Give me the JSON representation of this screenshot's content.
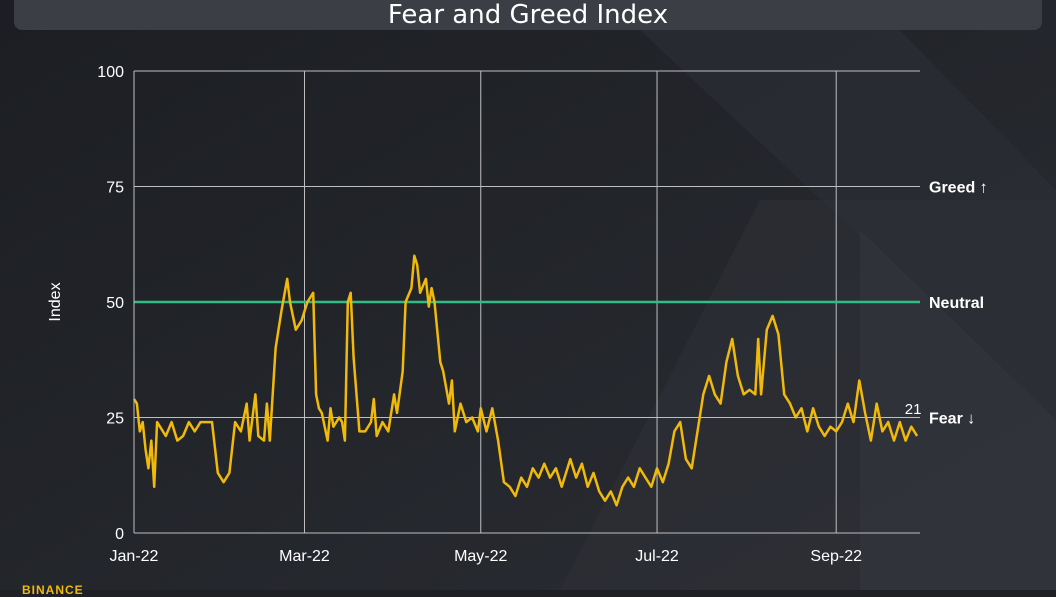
{
  "title": "Fear and Greed Index",
  "brand": "BINANCE",
  "colors": {
    "background": "#1e2026",
    "line": "#f0b90b",
    "neutral_line": "#2ebd85",
    "grid": "#bfbfbf",
    "text": "#ffffff"
  },
  "chart_data": {
    "type": "line",
    "title": "Fear and Greed Index",
    "xlabel": "",
    "ylabel": "Index",
    "ylim": [
      0,
      100
    ],
    "y_ticks": [
      "0",
      "25",
      "50",
      "75",
      "100"
    ],
    "x_ticks": [
      {
        "label": "Jan-22",
        "date": "2022-01-01"
      },
      {
        "label": "Mar-22",
        "date": "2022-03-01"
      },
      {
        "label": "May-22",
        "date": "2022-05-01"
      },
      {
        "label": "Jul-22",
        "date": "2022-07-01"
      },
      {
        "label": "Sep-22",
        "date": "2022-09-01"
      }
    ],
    "xlim": [
      "2022-01-01",
      "2022-09-30"
    ],
    "grid": true,
    "reference_lines": [
      {
        "value": 75,
        "label": "Greed ↑"
      },
      {
        "value": 50,
        "label": "Neutral"
      },
      {
        "value": 25,
        "label": "Fear ↓"
      }
    ],
    "last_value_label": "21",
    "series": [
      {
        "name": "",
        "points": [
          [
            "2022-01-01",
            29
          ],
          [
            "2022-01-02",
            28
          ],
          [
            "2022-01-03",
            22
          ],
          [
            "2022-01-04",
            24
          ],
          [
            "2022-01-05",
            18
          ],
          [
            "2022-01-06",
            14
          ],
          [
            "2022-01-07",
            20
          ],
          [
            "2022-01-08",
            10
          ],
          [
            "2022-01-09",
            24
          ],
          [
            "2022-01-10",
            23
          ],
          [
            "2022-01-12",
            21
          ],
          [
            "2022-01-14",
            24
          ],
          [
            "2022-01-16",
            20
          ],
          [
            "2022-01-18",
            21
          ],
          [
            "2022-01-20",
            24
          ],
          [
            "2022-01-22",
            22
          ],
          [
            "2022-01-24",
            24
          ],
          [
            "2022-01-26",
            24
          ],
          [
            "2022-01-28",
            24
          ],
          [
            "2022-01-30",
            13
          ],
          [
            "2022-02-01",
            11
          ],
          [
            "2022-02-03",
            13
          ],
          [
            "2022-02-05",
            24
          ],
          [
            "2022-02-07",
            22
          ],
          [
            "2022-02-09",
            28
          ],
          [
            "2022-02-10",
            20
          ],
          [
            "2022-02-12",
            30
          ],
          [
            "2022-02-13",
            21
          ],
          [
            "2022-02-15",
            20
          ],
          [
            "2022-02-16",
            28
          ],
          [
            "2022-02-17",
            20
          ],
          [
            "2022-02-19",
            40
          ],
          [
            "2022-02-21",
            48
          ],
          [
            "2022-02-23",
            55
          ],
          [
            "2022-02-24",
            50
          ],
          [
            "2022-02-26",
            44
          ],
          [
            "2022-02-28",
            46
          ],
          [
            "2022-03-02",
            50
          ],
          [
            "2022-03-04",
            52
          ],
          [
            "2022-03-05",
            30
          ],
          [
            "2022-03-06",
            27
          ],
          [
            "2022-03-07",
            26
          ],
          [
            "2022-03-09",
            20
          ],
          [
            "2022-03-10",
            27
          ],
          [
            "2022-03-11",
            23
          ],
          [
            "2022-03-13",
            25
          ],
          [
            "2022-03-14",
            24
          ],
          [
            "2022-03-15",
            20
          ],
          [
            "2022-03-16",
            50
          ],
          [
            "2022-03-17",
            52
          ],
          [
            "2022-03-18",
            38
          ],
          [
            "2022-03-20",
            22
          ],
          [
            "2022-03-22",
            22
          ],
          [
            "2022-03-24",
            24
          ],
          [
            "2022-03-25",
            29
          ],
          [
            "2022-03-26",
            21
          ],
          [
            "2022-03-28",
            24
          ],
          [
            "2022-03-30",
            22
          ],
          [
            "2022-04-01",
            30
          ],
          [
            "2022-04-02",
            26
          ],
          [
            "2022-04-04",
            35
          ],
          [
            "2022-04-05",
            50
          ],
          [
            "2022-04-07",
            53
          ],
          [
            "2022-04-08",
            60
          ],
          [
            "2022-04-09",
            58
          ],
          [
            "2022-04-10",
            52
          ],
          [
            "2022-04-12",
            55
          ],
          [
            "2022-04-13",
            49
          ],
          [
            "2022-04-14",
            53
          ],
          [
            "2022-04-15",
            50
          ],
          [
            "2022-04-17",
            37
          ],
          [
            "2022-04-18",
            35
          ],
          [
            "2022-04-20",
            28
          ],
          [
            "2022-04-21",
            33
          ],
          [
            "2022-04-22",
            22
          ],
          [
            "2022-04-24",
            28
          ],
          [
            "2022-04-26",
            24
          ],
          [
            "2022-04-28",
            25
          ],
          [
            "2022-04-30",
            22
          ],
          [
            "2022-05-01",
            27
          ],
          [
            "2022-05-03",
            22
          ],
          [
            "2022-05-05",
            27
          ],
          [
            "2022-05-07",
            20
          ],
          [
            "2022-05-09",
            11
          ],
          [
            "2022-05-11",
            10
          ],
          [
            "2022-05-13",
            8
          ],
          [
            "2022-05-15",
            12
          ],
          [
            "2022-05-17",
            10
          ],
          [
            "2022-05-19",
            14
          ],
          [
            "2022-05-21",
            12
          ],
          [
            "2022-05-23",
            15
          ],
          [
            "2022-05-25",
            12
          ],
          [
            "2022-05-27",
            14
          ],
          [
            "2022-05-29",
            10
          ],
          [
            "2022-06-01",
            16
          ],
          [
            "2022-06-03",
            12
          ],
          [
            "2022-06-05",
            15
          ],
          [
            "2022-06-07",
            10
          ],
          [
            "2022-06-09",
            13
          ],
          [
            "2022-06-11",
            9
          ],
          [
            "2022-06-13",
            7
          ],
          [
            "2022-06-15",
            9
          ],
          [
            "2022-06-17",
            6
          ],
          [
            "2022-06-19",
            10
          ],
          [
            "2022-06-21",
            12
          ],
          [
            "2022-06-23",
            10
          ],
          [
            "2022-06-25",
            14
          ],
          [
            "2022-06-27",
            12
          ],
          [
            "2022-06-29",
            10
          ],
          [
            "2022-07-01",
            14
          ],
          [
            "2022-07-03",
            11
          ],
          [
            "2022-07-05",
            15
          ],
          [
            "2022-07-07",
            22
          ],
          [
            "2022-07-09",
            24
          ],
          [
            "2022-07-11",
            16
          ],
          [
            "2022-07-13",
            14
          ],
          [
            "2022-07-15",
            22
          ],
          [
            "2022-07-17",
            30
          ],
          [
            "2022-07-19",
            34
          ],
          [
            "2022-07-21",
            30
          ],
          [
            "2022-07-23",
            28
          ],
          [
            "2022-07-25",
            37
          ],
          [
            "2022-07-27",
            42
          ],
          [
            "2022-07-29",
            34
          ],
          [
            "2022-07-31",
            30
          ],
          [
            "2022-08-02",
            31
          ],
          [
            "2022-08-04",
            30
          ],
          [
            "2022-08-05",
            42
          ],
          [
            "2022-08-06",
            30
          ],
          [
            "2022-08-08",
            44
          ],
          [
            "2022-08-10",
            47
          ],
          [
            "2022-08-12",
            43
          ],
          [
            "2022-08-14",
            30
          ],
          [
            "2022-08-16",
            28
          ],
          [
            "2022-08-18",
            25
          ],
          [
            "2022-08-20",
            27
          ],
          [
            "2022-08-22",
            22
          ],
          [
            "2022-08-24",
            27
          ],
          [
            "2022-08-26",
            23
          ],
          [
            "2022-08-28",
            21
          ],
          [
            "2022-08-30",
            23
          ],
          [
            "2022-09-01",
            22
          ],
          [
            "2022-09-03",
            24
          ],
          [
            "2022-09-05",
            28
          ],
          [
            "2022-09-07",
            24
          ],
          [
            "2022-09-09",
            33
          ],
          [
            "2022-09-11",
            26
          ],
          [
            "2022-09-13",
            20
          ],
          [
            "2022-09-15",
            28
          ],
          [
            "2022-09-17",
            22
          ],
          [
            "2022-09-19",
            24
          ],
          [
            "2022-09-21",
            20
          ],
          [
            "2022-09-23",
            24
          ],
          [
            "2022-09-25",
            20
          ],
          [
            "2022-09-27",
            23
          ],
          [
            "2022-09-29",
            21
          ]
        ]
      }
    ]
  }
}
